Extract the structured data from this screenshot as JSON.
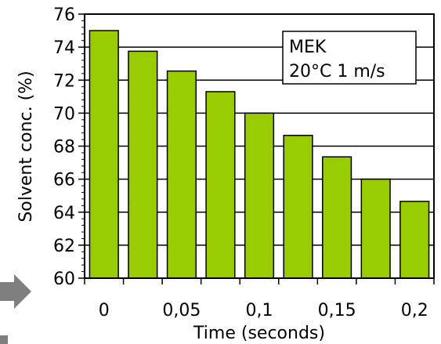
{
  "chart_data": {
    "type": "bar",
    "x": [
      0,
      0.025,
      0.05,
      0.075,
      0.1,
      0.125,
      0.15,
      0.175,
      0.2
    ],
    "values": [
      75.0,
      73.75,
      72.55,
      71.3,
      70.0,
      68.65,
      67.35,
      66.0,
      64.65
    ],
    "xticks": [
      "0",
      "0,05",
      "0,1",
      "0,15",
      "0,2"
    ],
    "yticks": [
      "60",
      "62",
      "64",
      "66",
      "68",
      "70",
      "72",
      "74",
      "76"
    ],
    "ylim": [
      60,
      76
    ],
    "xlabel": "Time (seconds)",
    "ylabel": "Solvent conc. (%)",
    "annotation": {
      "line1": "MEK",
      "line2": "20°C  1 m/s"
    },
    "grid": "horizontal",
    "bar_color": "#99cc00",
    "bar_edge_color": "#000000"
  }
}
